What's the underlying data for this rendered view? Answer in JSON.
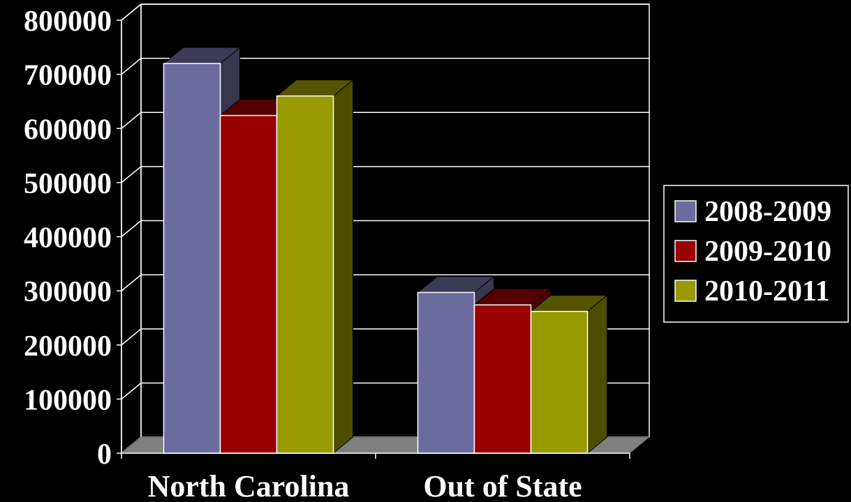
{
  "chart_data": {
    "type": "bar",
    "categories": [
      "North Carolina",
      "Out of State"
    ],
    "series": [
      {
        "name": "2008-2009",
        "values": [
          720000,
          297000
        ],
        "color": "#6b6b9e"
      },
      {
        "name": "2009-2010",
        "values": [
          624000,
          274000
        ],
        "color": "#990000"
      },
      {
        "name": "2010-2011",
        "values": [
          660000,
          262000
        ],
        "color": "#999900"
      }
    ],
    "ylim": [
      0,
      800000
    ],
    "yticks": [
      "0",
      "100000",
      "200000",
      "300000",
      "400000",
      "500000",
      "600000",
      "700000",
      "800000"
    ],
    "title": "",
    "xlabel": "",
    "ylabel": "",
    "grid": true,
    "legend": "right",
    "three_d": true,
    "colors": {
      "background": "#000000",
      "floor": "#808080",
      "grid": "#ffffff"
    }
  }
}
